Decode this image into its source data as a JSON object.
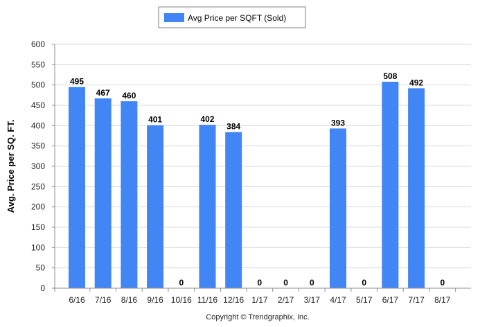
{
  "chart_data": {
    "type": "bar",
    "categories": [
      "6/16",
      "7/16",
      "8/16",
      "9/16",
      "10/16",
      "11/16",
      "12/16",
      "1/17",
      "2/17",
      "3/17",
      "4/17",
      "5/17",
      "6/17",
      "7/17",
      "8/17"
    ],
    "series": [
      {
        "name": "Avg Price per SQFT (Sold)",
        "values": [
          495,
          467,
          460,
          401,
          0,
          402,
          384,
          0,
          0,
          0,
          393,
          0,
          508,
          492,
          0
        ]
      }
    ],
    "data_labels": [
      "495",
      "467",
      "460",
      "401",
      "0",
      "402",
      "384",
      "0",
      "0",
      "0",
      "393",
      "0",
      "508",
      "492",
      "0"
    ],
    "ylabel": "Avg. Price per SQ. FT.",
    "xlabel": "",
    "ylim": [
      0,
      600
    ],
    "y_ticks": [
      0,
      50,
      100,
      150,
      200,
      250,
      300,
      350,
      400,
      450,
      500,
      550,
      600
    ],
    "grid": "horizontal",
    "legend_position": "top-center",
    "bar_color": "#4285F4",
    "grid_color": "#d9d9d9",
    "footer": "Copyright © Trendgraphix, Inc."
  }
}
